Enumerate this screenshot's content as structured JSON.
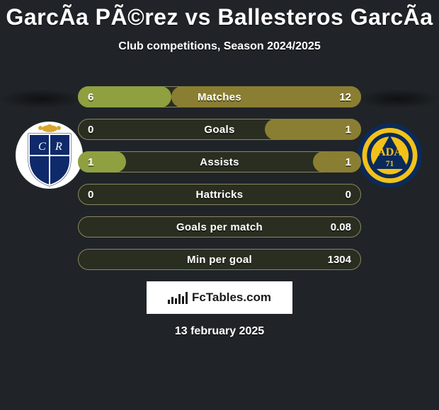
{
  "title": "GarcÃ­a PÃ©rez vs Ballesteros GarcÃ­a",
  "subtitle": "Club competitions, Season 2024/2025",
  "date": "13 february 2025",
  "source": "FcTables.com",
  "colors": {
    "background": "#202428",
    "bar_border": "#8b8660",
    "bar_track": "#2a2e20",
    "left_fill": "#8fa040",
    "right_fill": "#8a7e32",
    "text": "#ffffff"
  },
  "typography": {
    "family": "Arial Black",
    "title_fontsize": 32,
    "subtitle_fontsize": 16,
    "label_fontsize": 15,
    "weight": 900
  },
  "bar_geometry": {
    "height": 30,
    "radius": 15,
    "gap": 16,
    "track_width": 400
  },
  "left_badge": {
    "bg": "#ffffff",
    "shield_fill": "#0f2a6b",
    "shield_stroke": "#0a1e4e",
    "crown": "#d9a62e"
  },
  "right_badge": {
    "ring_outer": "#0a2a5a",
    "ring_inner": "#f2c21a",
    "core": "#0a2a5a",
    "text": "ADA",
    "year": "71"
  },
  "rows": [
    {
      "label": "Matches",
      "left": "6",
      "right": "12",
      "left_pct": 33,
      "right_pct": 67
    },
    {
      "label": "Goals",
      "left": "0",
      "right": "1",
      "left_pct": 0,
      "right_pct": 34
    },
    {
      "label": "Assists",
      "left": "1",
      "right": "1",
      "left_pct": 17,
      "right_pct": 17
    },
    {
      "label": "Hattricks",
      "left": "0",
      "right": "0",
      "left_pct": 0,
      "right_pct": 0
    },
    {
      "label": "Goals per match",
      "left": "",
      "right": "0.08",
      "left_pct": 0,
      "right_pct": 0
    },
    {
      "label": "Min per goal",
      "left": "",
      "right": "1304",
      "left_pct": 0,
      "right_pct": 0
    }
  ]
}
